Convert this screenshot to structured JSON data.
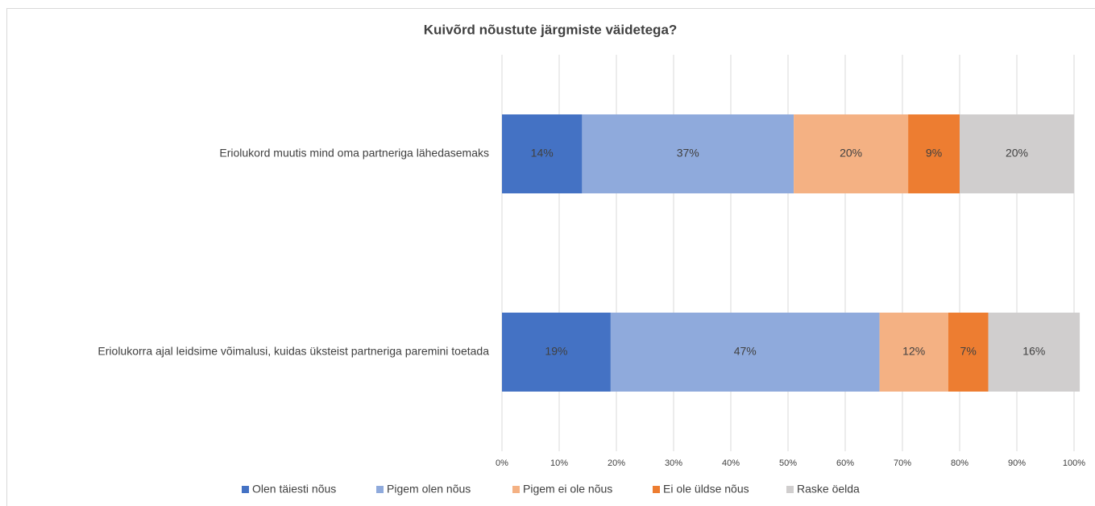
{
  "chart_data": {
    "type": "stacked_barh",
    "title": "Kuivõrd nõustute järgmiste väidetega?",
    "categories": [
      "Eriolukord muutis mind oma partneriga lähedasemaks",
      "Eriolukorra ajal leidsime võimalusi, kuidas üksteist partneriga paremini toetada"
    ],
    "series": [
      {
        "name": "Olen täiesti nõus",
        "color": "#4472c4",
        "values": [
          14,
          19
        ],
        "value_labels": [
          "14%",
          "19%"
        ]
      },
      {
        "name": "Pigem olen nõus",
        "color": "#8faadc",
        "values": [
          37,
          47
        ],
        "value_labels": [
          "37%",
          "47%"
        ]
      },
      {
        "name": "Pigem ei ole nõus",
        "color": "#f4b183",
        "values": [
          20,
          12
        ],
        "value_labels": [
          "20%",
          "12%"
        ]
      },
      {
        "name": "Ei ole üldse nõus",
        "color": "#ed7d31",
        "values": [
          9,
          7
        ],
        "value_labels": [
          "9%",
          "7%"
        ]
      },
      {
        "name": "Raske öelda",
        "color": "#d0cece",
        "values": [
          20,
          16
        ],
        "value_labels": [
          "20%",
          "16%"
        ]
      }
    ],
    "xlim": [
      0,
      100
    ],
    "xticks": [
      {
        "value": 0,
        "label": "0%"
      },
      {
        "value": 10,
        "label": "10%"
      },
      {
        "value": 20,
        "label": "20%"
      },
      {
        "value": 30,
        "label": "30%"
      },
      {
        "value": 40,
        "label": "40%"
      },
      {
        "value": 50,
        "label": "50%"
      },
      {
        "value": 60,
        "label": "60%"
      },
      {
        "value": 70,
        "label": "70%"
      },
      {
        "value": 80,
        "label": "80%"
      },
      {
        "value": 90,
        "label": "90%"
      },
      {
        "value": 100,
        "label": "100%"
      }
    ],
    "grid": true,
    "legend": "bottom"
  }
}
